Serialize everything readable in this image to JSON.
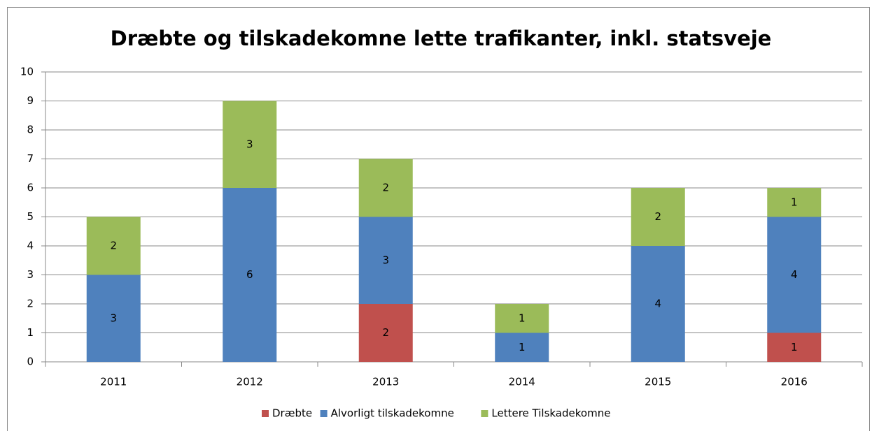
{
  "chart_data": {
    "type": "bar",
    "stacked": true,
    "title": "Dræbte og tilskadekomne lette trafikanter, inkl. statsveje",
    "categories": [
      "2011",
      "2012",
      "2013",
      "2014",
      "2015",
      "2016"
    ],
    "series": [
      {
        "name": "Dræbte",
        "color": "#c0504d",
        "values": [
          0,
          0,
          2,
          0,
          0,
          1
        ]
      },
      {
        "name": "Alvorligt tilskadekomne",
        "color": "#4f81bd",
        "values": [
          3,
          6,
          3,
          1,
          4,
          4
        ]
      },
      {
        "name": "Lettere Tilskadekomne",
        "color": "#9bbb59",
        "values": [
          2,
          3,
          2,
          1,
          2,
          1
        ]
      }
    ],
    "ylim": [
      0,
      10
    ],
    "yticks": [
      0,
      1,
      2,
      3,
      4,
      5,
      6,
      7,
      8,
      9,
      10
    ],
    "grid": true,
    "legend": "bottom"
  }
}
